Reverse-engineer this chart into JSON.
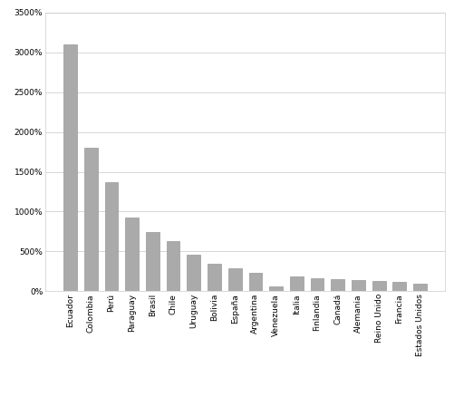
{
  "categories": [
    "Ecuador",
    "Colombia",
    "Perú",
    "Paraguay",
    "Brasil",
    "Chile",
    "Uruguay",
    "Bolivia",
    "España",
    "Argentina",
    "Venezuela",
    "Italia",
    "Finlandia",
    "Canadá",
    "Alemania",
    "Reino Unido",
    "Francia",
    "Estados Unidos"
  ],
  "values": [
    3100,
    1800,
    1370,
    920,
    740,
    625,
    455,
    340,
    285,
    230,
    60,
    190,
    160,
    150,
    145,
    130,
    120,
    90
  ],
  "bar_color": "#aaaaaa",
  "bar_edge_color": "#999999",
  "ylim": [
    0,
    3500
  ],
  "yticks": [
    0,
    500,
    1000,
    1500,
    2000,
    2500,
    3000,
    3500
  ],
  "background_color": "#ffffff",
  "grid_color": "#d0d0d0",
  "tick_label_fontsize": 6.5,
  "border_color": "#cccccc"
}
